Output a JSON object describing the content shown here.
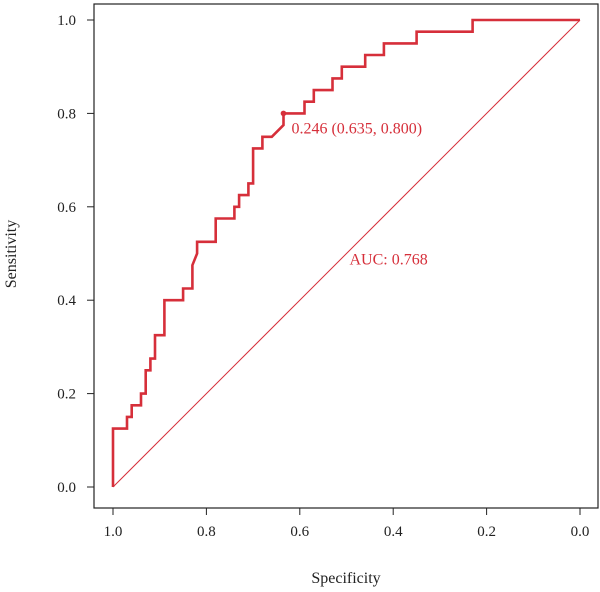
{
  "chart_data": {
    "type": "line",
    "title": "",
    "xlabel": "Specificity",
    "ylabel": "Sensitivity",
    "xlim": [
      1.0,
      0.0
    ],
    "ylim": [
      0.0,
      1.0
    ],
    "x_reversed": true,
    "grid": false,
    "x_ticks": [
      "1.0",
      "0.8",
      "0.6",
      "0.4",
      "0.2",
      "0.0"
    ],
    "y_ticks": [
      "0.0",
      "0.2",
      "0.4",
      "0.6",
      "0.8",
      "1.0"
    ],
    "colors": {
      "roc": "#d62f3a",
      "diagonal": "#d62f3a",
      "annotation": "#d62f3a",
      "axis": "#222222"
    },
    "series": [
      {
        "specificity": [
          1.0,
          1.0,
          0.97,
          0.97,
          0.96,
          0.96,
          0.94,
          0.94,
          0.93,
          0.93,
          0.92,
          0.92,
          0.91,
          0.91,
          0.89,
          0.89,
          0.85,
          0.85,
          0.83,
          0.83,
          0.82,
          0.82,
          0.78,
          0.78,
          0.74,
          0.74,
          0.73,
          0.73,
          0.71,
          0.71,
          0.7,
          0.7,
          0.68,
          0.68,
          0.66,
          0.635,
          0.635,
          0.59,
          0.59,
          0.57,
          0.57,
          0.53,
          0.53,
          0.51,
          0.51,
          0.46,
          0.46,
          0.42,
          0.42,
          0.35,
          0.35,
          0.23,
          0.23,
          0.0
        ],
        "sensitivity": [
          0.0,
          0.125,
          0.125,
          0.15,
          0.15,
          0.175,
          0.175,
          0.2,
          0.2,
          0.25,
          0.25,
          0.275,
          0.275,
          0.325,
          0.325,
          0.4,
          0.4,
          0.425,
          0.425,
          0.475,
          0.5,
          0.525,
          0.525,
          0.575,
          0.575,
          0.6,
          0.6,
          0.625,
          0.625,
          0.65,
          0.65,
          0.725,
          0.725,
          0.75,
          0.75,
          0.775,
          0.8,
          0.8,
          0.825,
          0.825,
          0.85,
          0.85,
          0.875,
          0.875,
          0.9,
          0.9,
          0.925,
          0.925,
          0.95,
          0.95,
          0.975,
          0.975,
          1.0,
          1.0
        ]
      }
    ],
    "best_point": {
      "threshold": 0.246,
      "specificity": 0.635,
      "sensitivity": 0.8,
      "label": "0.246 (0.635, 0.800)"
    },
    "auc_label": "AUC: 0.768"
  }
}
